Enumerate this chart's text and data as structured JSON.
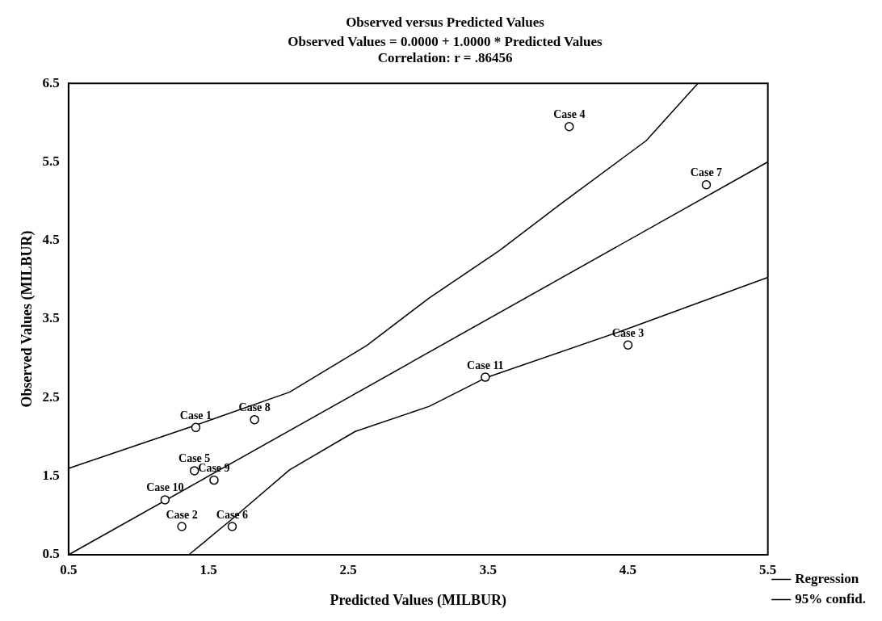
{
  "chart_data": {
    "type": "scatter",
    "title": "Observed versus Predicted Values",
    "subtitle": "Observed Values = 0.0000 + 1.0000 * Predicted Values\nCorrelation: r = .86456",
    "xlabel": "Predicted Values (MILBUR)",
    "ylabel": "Observed Values (MILBUR)",
    "xlim": [
      0.5,
      5.5
    ],
    "xticks": [
      0.5,
      1.5,
      2.5,
      3.5,
      4.5,
      5.5
    ],
    "ylim": [
      0.5,
      6.5
    ],
    "yticks": [
      0.5,
      1.5,
      2.5,
      3.5,
      4.5,
      5.5,
      6.5
    ],
    "grid": false,
    "legend": "bottom right",
    "marker": "circle",
    "series": [
      {
        "type": "scatter",
        "color": "#000000",
        "x": [
          1.41,
          1.31,
          4.5,
          4.08,
          1.4,
          1.67,
          5.06,
          1.83,
          1.54,
          1.19,
          3.48
        ],
        "values": [
          2.12,
          0.86,
          3.17,
          5.95,
          1.57,
          0.86,
          5.21,
          2.22,
          1.45,
          1.2,
          2.76
        ]
      },
      {
        "type": "line",
        "name": "Regression",
        "color": "#000000",
        "marker": "none",
        "x": [
          0.5,
          5.5
        ],
        "values": [
          0.5,
          5.5
        ]
      },
      {
        "type": "line",
        "name": "95% confid.",
        "color": "#000000",
        "marker": "none",
        "x": [
          0.5,
          1.41,
          2.08,
          2.63,
          3.08,
          3.58,
          4.03,
          4.63,
          5.0
        ],
        "values": [
          1.6,
          2.15,
          2.57,
          3.16,
          3.77,
          4.37,
          4.98,
          5.77,
          6.5
        ]
      },
      {
        "type": "line",
        "color": "#000000",
        "marker": "none",
        "x": [
          1.36,
          1.68,
          2.08,
          2.55,
          3.08,
          3.48,
          4.44,
          5.5
        ],
        "values": [
          0.5,
          0.97,
          1.58,
          2.07,
          2.39,
          2.75,
          3.34,
          4.03
        ]
      }
    ],
    "annotations": [
      {
        "text": "Case 1",
        "x": 1.41,
        "y": 2.12
      },
      {
        "text": "Case 2",
        "x": 1.31,
        "y": 0.86
      },
      {
        "text": "Case 3",
        "x": 4.5,
        "y": 3.17
      },
      {
        "text": "Case 4",
        "x": 4.08,
        "y": 5.95
      },
      {
        "text": "Case 5",
        "x": 1.4,
        "y": 1.57
      },
      {
        "text": "Case 6",
        "x": 1.67,
        "y": 0.86
      },
      {
        "text": "Case 7",
        "x": 5.06,
        "y": 5.21
      },
      {
        "text": "Case 8",
        "x": 1.83,
        "y": 2.22
      },
      {
        "text": "Case 9",
        "x": 1.54,
        "y": 1.45
      },
      {
        "text": "Case 10",
        "x": 1.19,
        "y": 1.2
      },
      {
        "text": "Case 11",
        "x": 3.48,
        "y": 2.76
      }
    ]
  }
}
